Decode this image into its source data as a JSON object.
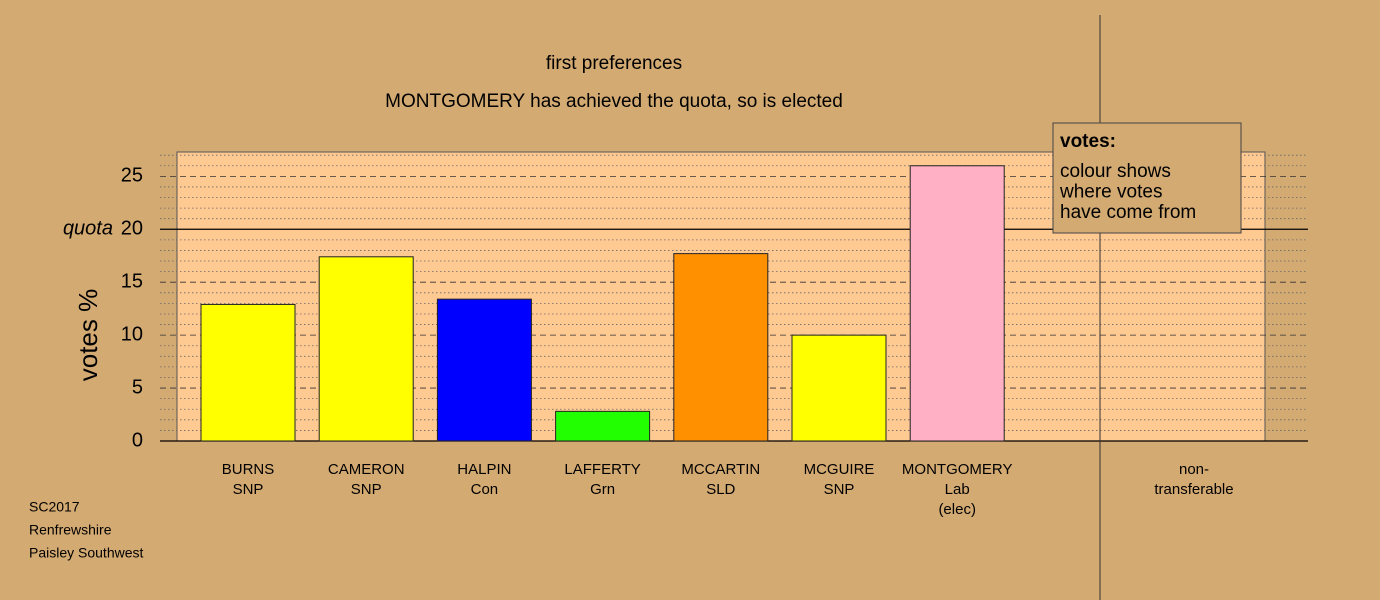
{
  "chart_data": {
    "type": "bar",
    "title": "first preferences",
    "subtitle": "MONTGOMERY has achieved the quota, so is elected",
    "y_label": "votes %",
    "categories": [
      [
        "BURNS",
        "SNP"
      ],
      [
        "CAMERON",
        "SNP"
      ],
      [
        "HALPIN",
        "Con"
      ],
      [
        "LAFFERTY",
        "Grn"
      ],
      [
        "MCCARTIN",
        "SLD"
      ],
      [
        "MCGUIRE",
        "SNP"
      ],
      [
        "MONTGOMERY",
        "Lab",
        "(elec)"
      ],
      [
        "non-",
        "transferable"
      ]
    ],
    "values": [
      12.9,
      17.4,
      13.4,
      2.8,
      17.7,
      10.0,
      26.0,
      null
    ],
    "colors": [
      "#ffff00",
      "#ffff00",
      "#0000ff",
      "#22ff00",
      "#ff9000",
      "#ffff00",
      "#ffb0c4",
      null
    ],
    "ylim": [
      0,
      27.3
    ],
    "yticks": [
      0,
      5,
      10,
      15,
      20,
      25
    ],
    "minor_yticks": [
      1,
      2,
      3,
      4,
      6,
      7,
      8,
      9,
      11,
      12,
      13,
      14,
      16,
      17,
      18,
      19,
      21,
      22,
      23,
      24,
      26,
      27
    ],
    "quota": {
      "label": "quota",
      "value": 20
    },
    "legend": {
      "title": "votes:",
      "lines": [
        "colour shows",
        "where votes",
        "have come from"
      ]
    },
    "footer": [
      "SC2017",
      "Renfrewshire",
      "Paisley Southwest"
    ]
  }
}
